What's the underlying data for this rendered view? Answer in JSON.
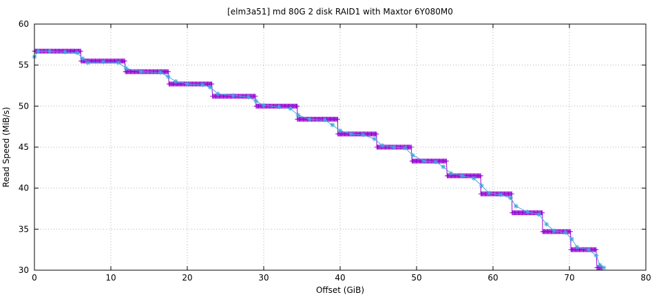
{
  "chart_data": {
    "type": "scatter",
    "title": "[elm3a51] md 80G 2 disk RAID1 with Maxtor 6Y080M0",
    "xlabel": "Offset (GiB)",
    "ylabel": "Read Speed (MiB/s)",
    "xlim": [
      0,
      80
    ],
    "ylim": [
      30,
      60
    ],
    "xticks": [
      "0",
      "10",
      "20",
      "30",
      "40",
      "50",
      "60",
      "70",
      "80"
    ],
    "yticks": [
      "30",
      "35",
      "40",
      "45",
      "50",
      "55",
      "60"
    ],
    "grid": true,
    "legend": "none",
    "series": [
      {
        "marker": "plus",
        "color": "#9400d3",
        "steps": [
          {
            "x0": 0.0,
            "x1": 6.1,
            "y": 56.7
          },
          {
            "x0": 6.1,
            "x1": 11.9,
            "y": 55.5
          },
          {
            "x0": 11.9,
            "x1": 17.6,
            "y": 54.2
          },
          {
            "x0": 17.6,
            "x1": 23.3,
            "y": 52.7
          },
          {
            "x0": 23.3,
            "x1": 29.0,
            "y": 51.2
          },
          {
            "x0": 29.0,
            "x1": 34.4,
            "y": 50.0
          },
          {
            "x0": 34.4,
            "x1": 39.7,
            "y": 48.4
          },
          {
            "x0": 39.7,
            "x1": 44.8,
            "y": 46.6
          },
          {
            "x0": 44.8,
            "x1": 49.4,
            "y": 45.0
          },
          {
            "x0": 49.4,
            "x1": 54.0,
            "y": 43.3
          },
          {
            "x0": 54.0,
            "x1": 58.4,
            "y": 41.5
          },
          {
            "x0": 58.4,
            "x1": 62.5,
            "y": 39.3
          },
          {
            "x0": 62.5,
            "x1": 66.5,
            "y": 37.0
          },
          {
            "x0": 66.5,
            "x1": 70.2,
            "y": 34.7
          },
          {
            "x0": 70.2,
            "x1": 73.6,
            "y": 32.5
          },
          {
            "x0": 73.6,
            "x1": 74.3,
            "y": 30.3
          }
        ]
      },
      {
        "marker": "star",
        "color": "#3fa6dc",
        "x": [
          0.0,
          0.5,
          2.0,
          4.0,
          5.6,
          6.3,
          7.0,
          9.0,
          11.0,
          12.0,
          14.0,
          16.5,
          17.5,
          18.5,
          20.0,
          22.0,
          23.0,
          24.0,
          26.0,
          28.0,
          29.0,
          30.0,
          32.0,
          33.5,
          34.5,
          36.0,
          38.0,
          39.0,
          40.0,
          41.5,
          43.0,
          44.5,
          45.5,
          47.0,
          48.5,
          49.5,
          51.0,
          52.5,
          53.5,
          54.5,
          56.0,
          57.5,
          58.5,
          59.5,
          61.0,
          62.3,
          63.0,
          64.5,
          66.0,
          67.0,
          68.0,
          69.5,
          70.3,
          71.0,
          72.5,
          73.5,
          74.0,
          74.5
        ],
        "y": [
          56.0,
          56.7,
          56.7,
          56.6,
          56.5,
          55.8,
          55.3,
          55.4,
          55.3,
          54.6,
          54.2,
          54.1,
          53.6,
          53.0,
          52.7,
          52.6,
          52.3,
          51.5,
          51.3,
          51.1,
          50.6,
          50.1,
          49.9,
          49.7,
          48.9,
          48.4,
          48.3,
          47.7,
          47.0,
          46.6,
          46.5,
          46.0,
          45.2,
          45.0,
          44.9,
          44.0,
          43.3,
          43.2,
          42.6,
          41.8,
          41.5,
          41.2,
          40.3,
          39.4,
          39.2,
          38.8,
          37.8,
          37.1,
          36.8,
          35.6,
          34.8,
          34.6,
          33.8,
          32.8,
          32.5,
          31.8,
          30.6,
          30.3
        ]
      }
    ]
  }
}
